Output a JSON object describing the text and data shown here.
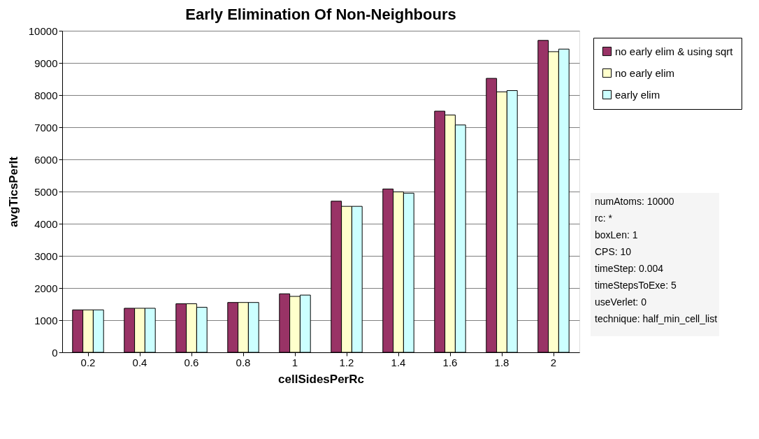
{
  "chart_data": {
    "type": "bar",
    "title": "Early Elimination Of Non-Neighbours",
    "xlabel": "cellSidesPerRc",
    "ylabel": "avgTicsPerIt",
    "categories": [
      "0.2",
      "0.4",
      "0.6",
      "0.8",
      "1",
      "1.2",
      "1.4",
      "1.6",
      "1.8",
      "2"
    ],
    "series": [
      {
        "name": "no early elim & using sqrt",
        "color": "#993366",
        "values": [
          1320,
          1370,
          1510,
          1550,
          1820,
          4700,
          5080,
          7500,
          8520,
          9700
        ]
      },
      {
        "name": "no early elim",
        "color": "#ffffcc",
        "values": [
          1320,
          1370,
          1510,
          1550,
          1740,
          4540,
          4990,
          7380,
          8100,
          9350
        ]
      },
      {
        "name": "early elim",
        "color": "#ccffff",
        "values": [
          1320,
          1370,
          1400,
          1550,
          1780,
          4540,
          4950,
          7070,
          8140,
          9430
        ]
      }
    ],
    "ylim": [
      0,
      10000
    ],
    "yticks": [
      0,
      1000,
      2000,
      3000,
      4000,
      5000,
      6000,
      7000,
      8000,
      9000,
      10000
    ],
    "grid": "y",
    "legend": "right",
    "annotations": [
      "numAtoms: 10000",
      "rc: *",
      "boxLen: 1",
      "CPS: 10",
      "timeStep: 0.004",
      "timeStepsToExe: 5",
      "useVerlet: 0",
      "technique: half_min_cell_list"
    ]
  }
}
